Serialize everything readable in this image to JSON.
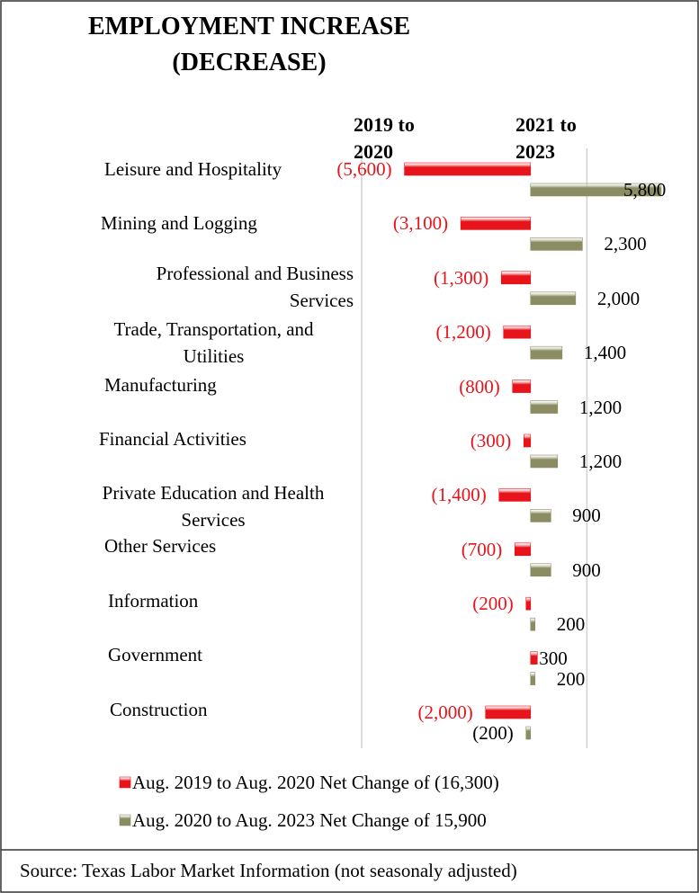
{
  "chart_data": {
    "type": "bar",
    "orientation": "horizontal",
    "title": "EMPLOYMENT INCREASE (DECREASE)",
    "annotations": [
      "2019 to 2020",
      "2021 to 2023"
    ],
    "categories": [
      "Leisure and Hospitality",
      "Mining and Logging",
      "Professional and Business Services",
      "Trade, Transportation, and Utilities",
      "Manufacturing",
      "Financial Activities",
      "Private Education and Health Services",
      "Other Services",
      "Information",
      "Government",
      "Construction"
    ],
    "series": [
      {
        "name": "Aug. 2019 to Aug. 2020 Net Change of (16,300)",
        "color": "#e8141b",
        "values": [
          -5600,
          -3100,
          -1300,
          -1200,
          -800,
          -300,
          -1400,
          -700,
          -200,
          300,
          -2000
        ],
        "value_labels": [
          "(5,600)",
          "(3,100)",
          "(1,300)",
          "(1,200)",
          "(800)",
          "(300)",
          "(1,400)",
          "(700)",
          "(200)",
          "300",
          "(2,000)"
        ]
      },
      {
        "name": "Aug. 2020 to Aug. 2023 Net Change of 15,900",
        "color": "#8c8c63",
        "values": [
          5800,
          2300,
          2000,
          1400,
          1200,
          1200,
          900,
          900,
          200,
          200,
          -200
        ],
        "value_labels": [
          "5,800",
          "2,300",
          "2,000",
          "1,400",
          "1,200",
          "1,200",
          "900",
          "900",
          "200",
          "200",
          "(200)"
        ]
      }
    ],
    "xlim": [
      -7500,
      6000
    ],
    "xticks": [
      -7500,
      2500
    ],
    "grid": true,
    "source": "Source: Texas Labor Market Information (not seasonaly adjusted)"
  }
}
